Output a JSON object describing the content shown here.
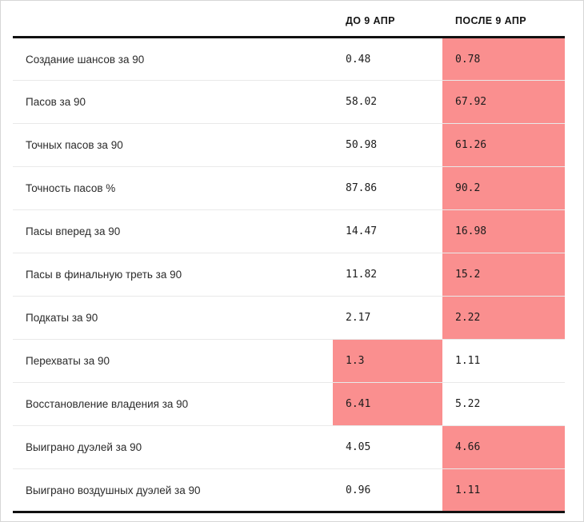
{
  "table": {
    "columns": {
      "metric": "",
      "before": "ДО 9 АПР",
      "after": "ПОСЛЕ 9 АПР"
    },
    "highlight_color": "#fa8f8f",
    "rows": [
      {
        "label": "Создание шансов за 90",
        "before": "0.48",
        "after": "0.78",
        "highlight": "after"
      },
      {
        "label": "Пасов за 90",
        "before": "58.02",
        "after": "67.92",
        "highlight": "after"
      },
      {
        "label": "Точных пасов за 90",
        "before": "50.98",
        "after": "61.26",
        "highlight": "after"
      },
      {
        "label": "Точность пасов %",
        "before": "87.86",
        "after": "90.2",
        "highlight": "after"
      },
      {
        "label": "Пасы вперед за 90",
        "before": "14.47",
        "after": "16.98",
        "highlight": "after"
      },
      {
        "label": "Пасы в финальную треть за 90",
        "before": "11.82",
        "after": "15.2",
        "highlight": "after"
      },
      {
        "label": "Подкаты за 90",
        "before": "2.17",
        "after": "2.22",
        "highlight": "after"
      },
      {
        "label": "Перехваты за 90",
        "before": "1.3",
        "after": "1.11",
        "highlight": "before"
      },
      {
        "label": "Восстановление владения за 90",
        "before": "6.41",
        "after": "5.22",
        "highlight": "before"
      },
      {
        "label": "Выиграно дуэлей за 90",
        "before": "4.05",
        "after": "4.66",
        "highlight": "after"
      },
      {
        "label": "Выиграно воздушных дуэлей за 90",
        "before": "0.96",
        "after": "1.11",
        "highlight": "after"
      }
    ]
  }
}
